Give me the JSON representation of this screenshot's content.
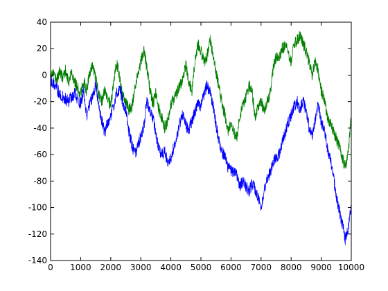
{
  "chart_data": {
    "type": "line",
    "title": "",
    "xlabel": "",
    "ylabel": "",
    "xlim": [
      0,
      10000
    ],
    "ylim": [
      -140,
      40
    ],
    "xticks": [
      0,
      1000,
      2000,
      3000,
      4000,
      5000,
      6000,
      7000,
      8000,
      9000,
      10000
    ],
    "yticks": [
      -140,
      -120,
      -100,
      -80,
      -60,
      -40,
      -20,
      0,
      20,
      40
    ],
    "grid": false,
    "legend": "none",
    "x": [
      0,
      100,
      200,
      300,
      400,
      500,
      600,
      700,
      800,
      900,
      1000,
      1100,
      1200,
      1300,
      1400,
      1500,
      1600,
      1700,
      1800,
      1900,
      2000,
      2100,
      2200,
      2300,
      2400,
      2500,
      2600,
      2700,
      2800,
      2900,
      3000,
      3100,
      3200,
      3300,
      3400,
      3500,
      3600,
      3700,
      3800,
      3900,
      4000,
      4100,
      4200,
      4300,
      4400,
      4500,
      4600,
      4700,
      4800,
      4900,
      5000,
      5100,
      5200,
      5300,
      5400,
      5500,
      5600,
      5700,
      5800,
      5900,
      6000,
      6100,
      6200,
      6300,
      6400,
      6500,
      6600,
      6700,
      6800,
      6900,
      7000,
      7100,
      7200,
      7300,
      7400,
      7500,
      7600,
      7700,
      7800,
      7900,
      8000,
      8100,
      8200,
      8300,
      8400,
      8500,
      8600,
      8700,
      8800,
      8900,
      9000,
      9100,
      9200,
      9300,
      9400,
      9500,
      9600,
      9700,
      9800,
      9900,
      10000
    ],
    "series": [
      {
        "color": "#007f00",
        "values": [
          0,
          2,
          -4,
          3,
          -2,
          4,
          -6,
          2,
          -4,
          -10,
          -14,
          -4,
          -12,
          2,
          8,
          -2,
          -14,
          -20,
          -12,
          -18,
          -24,
          -6,
          10,
          -2,
          -16,
          -20,
          -26,
          -24,
          -12,
          0,
          10,
          18,
          6,
          -10,
          -22,
          -14,
          -26,
          -32,
          -40,
          -34,
          -22,
          -18,
          -14,
          -8,
          -2,
          8,
          -6,
          -12,
          10,
          24,
          18,
          10,
          14,
          28,
          16,
          2,
          -8,
          -22,
          -30,
          -42,
          -36,
          -44,
          -46,
          -30,
          -22,
          -16,
          -8,
          -12,
          -32,
          -24,
          -20,
          -28,
          -20,
          -14,
          4,
          14,
          12,
          20,
          22,
          18,
          10,
          24,
          26,
          30,
          24,
          18,
          10,
          0,
          12,
          4,
          -12,
          -18,
          -32,
          -36,
          -42,
          -48,
          -54,
          -62,
          -70,
          -58,
          -30
        ]
      },
      {
        "color": "#0000ff",
        "values": [
          -4,
          -6,
          -10,
          -14,
          -16,
          -18,
          -20,
          -16,
          -14,
          -18,
          -22,
          -12,
          -32,
          -22,
          -16,
          -8,
          -24,
          -34,
          -44,
          -36,
          -30,
          -24,
          -14,
          -10,
          -20,
          -26,
          -42,
          -52,
          -60,
          -54,
          -46,
          -38,
          -20,
          -26,
          -32,
          -44,
          -56,
          -60,
          -58,
          -66,
          -62,
          -54,
          -48,
          -36,
          -30,
          -38,
          -42,
          -34,
          -28,
          -20,
          -24,
          -14,
          -8,
          -12,
          -22,
          -38,
          -50,
          -58,
          -62,
          -70,
          -72,
          -74,
          -76,
          -84,
          -80,
          -84,
          -88,
          -82,
          -86,
          -92,
          -100,
          -88,
          -78,
          -74,
          -66,
          -62,
          -60,
          -52,
          -44,
          -36,
          -30,
          -24,
          -20,
          -26,
          -18,
          -28,
          -40,
          -46,
          -34,
          -22,
          -36,
          -40,
          -54,
          -64,
          -76,
          -92,
          -102,
          -112,
          -124,
          -116,
          -96
        ]
      }
    ]
  }
}
